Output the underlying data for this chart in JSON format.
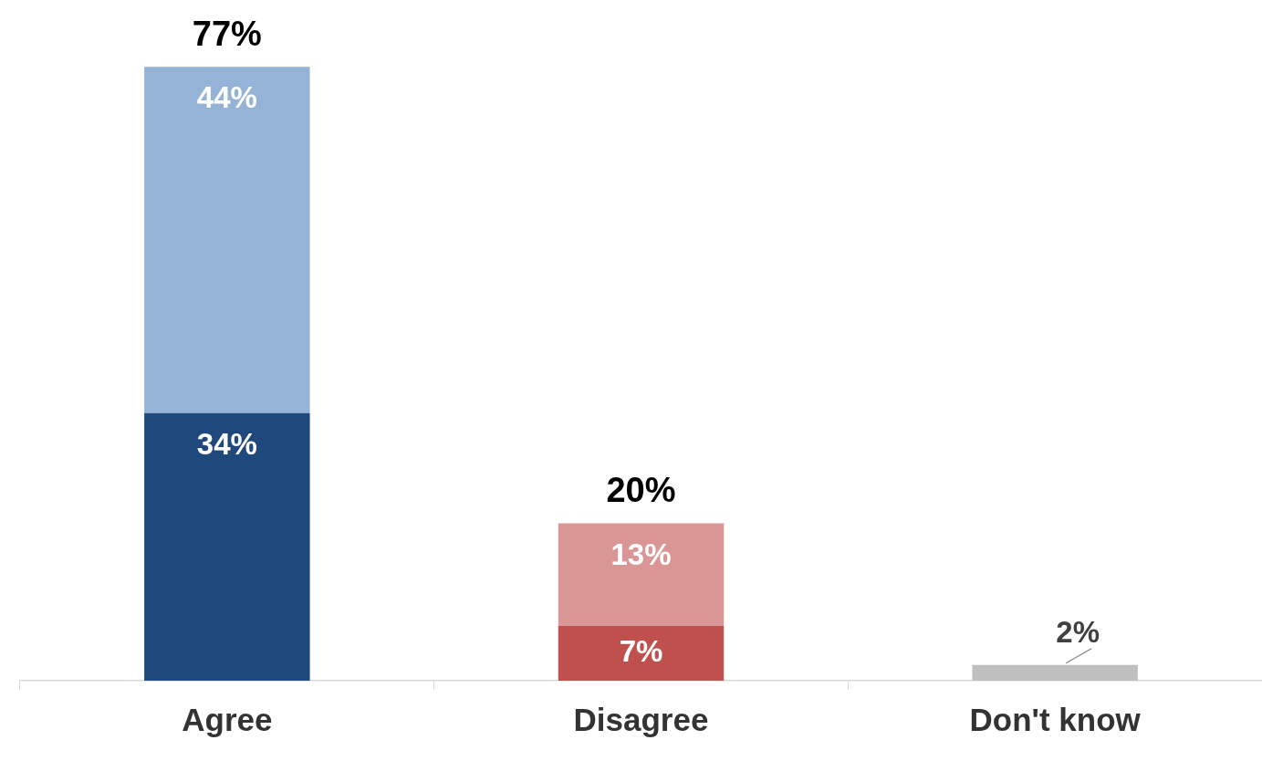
{
  "chart_data": {
    "type": "bar",
    "stacked": true,
    "categories": [
      "Agree",
      "Disagree",
      "Don't know"
    ],
    "tick_labels": "x",
    "grid": false,
    "legend": false,
    "series": [
      {
        "colors": [
          "#1f497d",
          "#c0504d",
          "#bfbfbf"
        ],
        "values": [
          34,
          7,
          2
        ],
        "value_labels": [
          "34%",
          "7%",
          "2%"
        ]
      },
      {
        "colors": [
          "#95b3d7",
          "#d99694",
          null
        ],
        "values": [
          44,
          13,
          null
        ],
        "value_labels": [
          "44%",
          "13%",
          null
        ]
      }
    ],
    "totals": [
      "77%",
      "20%",
      null
    ]
  }
}
